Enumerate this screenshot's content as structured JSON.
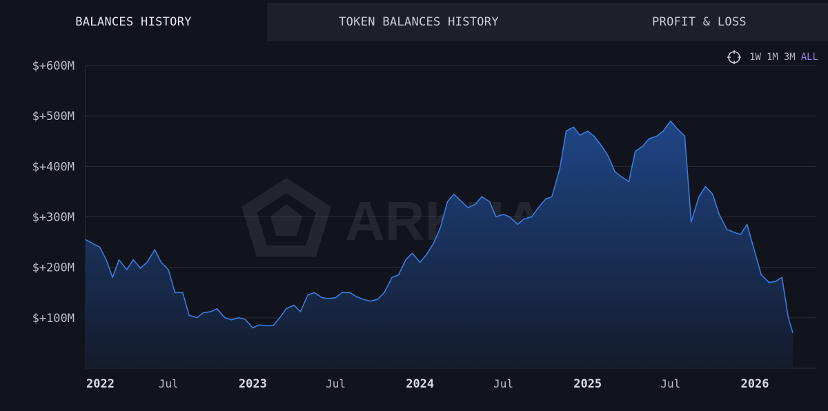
{
  "tabs": [
    {
      "label": "BALANCES HISTORY",
      "active": true
    },
    {
      "label": "TOKEN BALANCES HISTORY",
      "active": false
    },
    {
      "label": "PROFIT & LOSS",
      "active": false
    }
  ],
  "range_selector": {
    "icon": "crosshair-icon",
    "options": [
      "1W",
      "1M",
      "3M",
      "ALL"
    ],
    "selected": "ALL"
  },
  "watermark": {
    "text": "ARKHAM"
  },
  "colors": {
    "background": "#11141c",
    "tab_inactive": "#1d2029",
    "line": "#3b7be0",
    "area_top": "#1f4585",
    "area_bottom": "#141b2c",
    "accent": "#9a7ee6",
    "grid": "#2a2e38"
  },
  "chart_data": {
    "type": "area",
    "title": "",
    "xlabel": "",
    "ylabel": "",
    "ylim": [
      0,
      600
    ],
    "y_unit": "$M",
    "yticks": [
      {
        "value": 100,
        "label": "$+100M"
      },
      {
        "value": 200,
        "label": "$+200M"
      },
      {
        "value": 300,
        "label": "$+300M"
      },
      {
        "value": 400,
        "label": "$+400M"
      },
      {
        "value": 500,
        "label": "$+500M"
      },
      {
        "value": 600,
        "label": "$+600M"
      }
    ],
    "xlim": [
      "2022-01-01",
      "2026-05-15"
    ],
    "xticks": [
      {
        "date": "2022-01-01",
        "label": "2022",
        "year": true
      },
      {
        "date": "2022-07-01",
        "label": "Jul",
        "year": false
      },
      {
        "date": "2023-01-01",
        "label": "2023",
        "year": true
      },
      {
        "date": "2023-07-01",
        "label": "Jul",
        "year": false
      },
      {
        "date": "2024-01-01",
        "label": "2024",
        "year": true
      },
      {
        "date": "2024-07-01",
        "label": "Jul",
        "year": false
      },
      {
        "date": "2025-01-01",
        "label": "2025",
        "year": true
      },
      {
        "date": "2025-07-01",
        "label": "Jul",
        "year": false
      },
      {
        "date": "2026-01-01",
        "label": "2026",
        "year": true
      }
    ],
    "grid": true,
    "series": [
      {
        "points": [
          [
            "2022-01-01",
            255
          ],
          [
            "2022-01-15",
            248
          ],
          [
            "2022-02-01",
            240
          ],
          [
            "2022-02-15",
            215
          ],
          [
            "2022-03-01",
            180
          ],
          [
            "2022-03-15",
            215
          ],
          [
            "2022-04-01",
            195
          ],
          [
            "2022-04-15",
            215
          ],
          [
            "2022-05-01",
            198
          ],
          [
            "2022-05-15",
            210
          ],
          [
            "2022-06-01",
            235
          ],
          [
            "2022-06-15",
            210
          ],
          [
            "2022-07-01",
            195
          ],
          [
            "2022-07-15",
            150
          ],
          [
            "2022-08-01",
            150
          ],
          [
            "2022-08-15",
            105
          ],
          [
            "2022-09-01",
            100
          ],
          [
            "2022-09-15",
            110
          ],
          [
            "2022-10-01",
            112
          ],
          [
            "2022-10-15",
            118
          ],
          [
            "2022-11-01",
            100
          ],
          [
            "2022-11-15",
            96
          ],
          [
            "2022-12-01",
            100
          ],
          [
            "2022-12-15",
            97
          ],
          [
            "2023-01-01",
            80
          ],
          [
            "2023-01-15",
            86
          ],
          [
            "2023-02-01",
            84
          ],
          [
            "2023-02-15",
            85
          ],
          [
            "2023-03-01",
            100
          ],
          [
            "2023-03-15",
            118
          ],
          [
            "2023-04-01",
            125
          ],
          [
            "2023-04-15",
            112
          ],
          [
            "2023-05-01",
            145
          ],
          [
            "2023-05-15",
            150
          ],
          [
            "2023-06-01",
            140
          ],
          [
            "2023-06-15",
            138
          ],
          [
            "2023-07-01",
            140
          ],
          [
            "2023-07-15",
            150
          ],
          [
            "2023-08-01",
            150
          ],
          [
            "2023-08-15",
            142
          ],
          [
            "2023-09-01",
            136
          ],
          [
            "2023-09-15",
            133
          ],
          [
            "2023-10-01",
            137
          ],
          [
            "2023-10-15",
            150
          ],
          [
            "2023-11-01",
            180
          ],
          [
            "2023-11-15",
            185
          ],
          [
            "2023-12-01",
            215
          ],
          [
            "2023-12-15",
            228
          ],
          [
            "2024-01-01",
            210
          ],
          [
            "2024-01-15",
            225
          ],
          [
            "2024-02-01",
            250
          ],
          [
            "2024-02-15",
            280
          ],
          [
            "2024-03-01",
            330
          ],
          [
            "2024-03-15",
            345
          ],
          [
            "2024-04-01",
            330
          ],
          [
            "2024-04-15",
            318
          ],
          [
            "2024-05-01",
            325
          ],
          [
            "2024-05-15",
            340
          ],
          [
            "2024-06-01",
            330
          ],
          [
            "2024-06-15",
            300
          ],
          [
            "2024-07-01",
            305
          ],
          [
            "2024-07-15",
            300
          ],
          [
            "2024-08-01",
            285
          ],
          [
            "2024-08-15",
            296
          ],
          [
            "2024-09-01",
            300
          ],
          [
            "2024-09-15",
            318
          ],
          [
            "2024-10-01",
            335
          ],
          [
            "2024-10-15",
            340
          ],
          [
            "2024-11-01",
            395
          ],
          [
            "2024-11-15",
            470
          ],
          [
            "2024-12-01",
            478
          ],
          [
            "2024-12-15",
            462
          ],
          [
            "2025-01-01",
            470
          ],
          [
            "2025-01-15",
            460
          ],
          [
            "2025-02-01",
            440
          ],
          [
            "2025-02-15",
            420
          ],
          [
            "2025-03-01",
            390
          ],
          [
            "2025-03-15",
            380
          ],
          [
            "2025-04-01",
            370
          ],
          [
            "2025-04-15",
            430
          ],
          [
            "2025-05-01",
            440
          ],
          [
            "2025-05-15",
            455
          ],
          [
            "2025-06-01",
            460
          ],
          [
            "2025-06-15",
            470
          ],
          [
            "2025-07-01",
            490
          ],
          [
            "2025-07-15",
            475
          ],
          [
            "2025-08-01",
            460
          ],
          [
            "2025-08-15",
            290
          ],
          [
            "2025-09-01",
            340
          ],
          [
            "2025-09-15",
            360
          ],
          [
            "2025-10-01",
            345
          ],
          [
            "2025-10-15",
            305
          ],
          [
            "2025-11-01",
            275
          ],
          [
            "2025-11-15",
            270
          ],
          [
            "2025-12-01",
            265
          ],
          [
            "2025-12-15",
            285
          ],
          [
            "2026-01-01",
            230
          ],
          [
            "2026-01-15",
            185
          ],
          [
            "2026-02-01",
            170
          ],
          [
            "2026-02-15",
            172
          ],
          [
            "2026-03-01",
            180
          ],
          [
            "2026-03-15",
            100
          ],
          [
            "2026-03-25",
            70
          ]
        ]
      }
    ]
  }
}
